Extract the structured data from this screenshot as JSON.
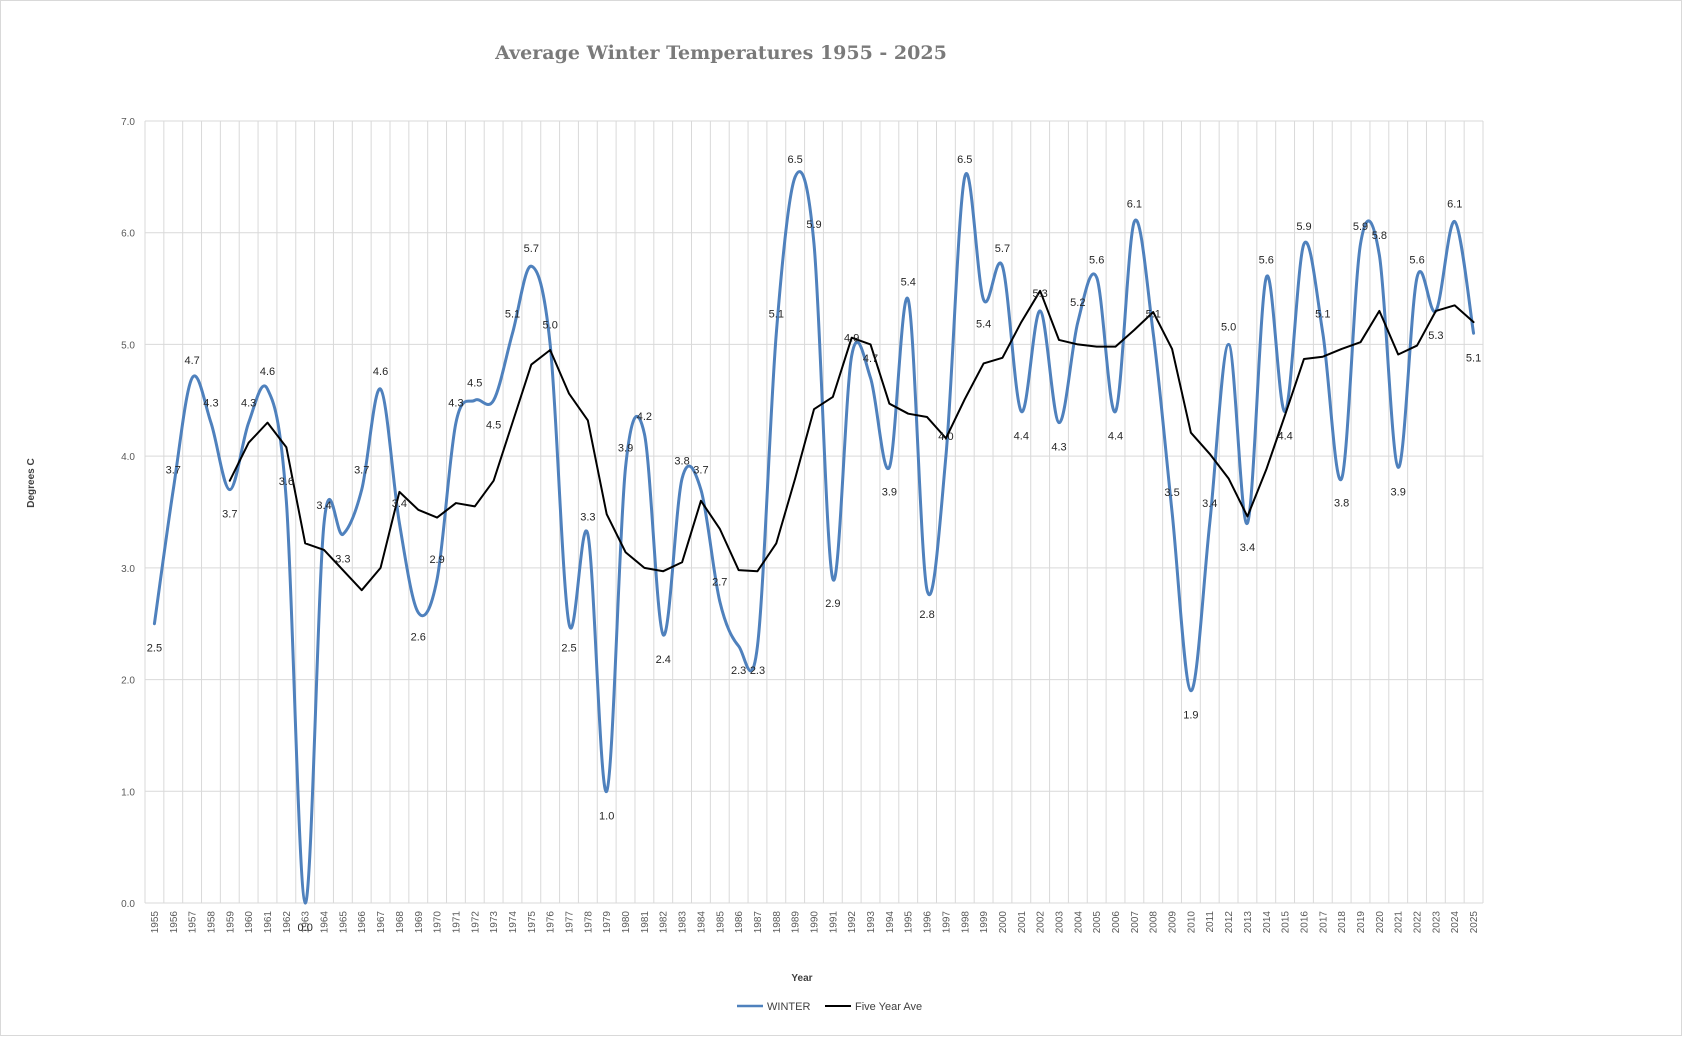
{
  "chart_data": {
    "type": "line",
    "title": "Average Winter Temperatures 1955 - 2025",
    "xlabel": "Year",
    "ylabel": "Degrees C",
    "ylim": [
      0,
      7
    ],
    "yticks": [
      "0.0",
      "1.0",
      "2.0",
      "3.0",
      "4.0",
      "5.0",
      "6.0",
      "7.0"
    ],
    "grid": true,
    "legend_placement": "bottom",
    "x": [
      1955,
      1956,
      1957,
      1958,
      1959,
      1960,
      1961,
      1962,
      1963,
      1964,
      1965,
      1966,
      1967,
      1968,
      1969,
      1970,
      1971,
      1972,
      1973,
      1974,
      1975,
      1976,
      1977,
      1978,
      1979,
      1980,
      1981,
      1982,
      1983,
      1984,
      1985,
      1986,
      1987,
      1988,
      1989,
      1990,
      1991,
      1992,
      1993,
      1994,
      1995,
      1996,
      1997,
      1998,
      1999,
      2000,
      2001,
      2002,
      2003,
      2004,
      2005,
      2006,
      2007,
      2008,
      2009,
      2010,
      2011,
      2012,
      2013,
      2014,
      2015,
      2016,
      2017,
      2018,
      2019,
      2020,
      2021,
      2022,
      2023,
      2024,
      2025
    ],
    "series": [
      {
        "name": "WINTER",
        "color": "#4f81bd",
        "smooth": true,
        "values": [
          2.5,
          3.7,
          4.7,
          4.3,
          3.7,
          4.3,
          4.6,
          3.6,
          0.0,
          3.4,
          3.3,
          3.7,
          4.6,
          3.4,
          2.6,
          2.9,
          4.3,
          4.5,
          4.5,
          5.1,
          5.7,
          5.0,
          2.5,
          3.3,
          1.0,
          3.9,
          4.2,
          2.4,
          3.8,
          3.7,
          2.7,
          2.3,
          2.3,
          5.1,
          6.5,
          5.9,
          2.9,
          4.9,
          4.7,
          3.9,
          5.4,
          2.8,
          4.0,
          6.5,
          5.4,
          5.7,
          4.4,
          5.3,
          4.3,
          5.2,
          5.6,
          4.4,
          6.1,
          5.1,
          3.5,
          1.9,
          3.4,
          5.0,
          3.4,
          5.6,
          4.4,
          5.9,
          5.1,
          3.8,
          5.9,
          5.8,
          3.9,
          5.6,
          5.3,
          6.1,
          5.1
        ],
        "labels": [
          "2.5",
          "3.7",
          "4.7",
          "4.3",
          "3.7",
          "4.3",
          "4.6",
          "3.6",
          "0.0",
          "3.4",
          "3.3",
          "3.7",
          "4.6",
          "3.4",
          "2.6",
          "2.9",
          "4.3",
          "4.5",
          "4.5",
          "5.1",
          "5.7",
          "5.0",
          "2.5",
          "3.3",
          "1.0",
          "3.9",
          "4.2",
          "2.4",
          "3.8",
          "3.7",
          "2.7",
          "2.3",
          "2.3",
          "5.1",
          "6.5",
          "5.9",
          "2.9",
          "4.9",
          "4.7",
          "3.9",
          "5.4",
          "2.8",
          "4.0",
          "6.5",
          "5.4",
          "5.7",
          "4.4",
          "5.3",
          "4.3",
          "5.2",
          "5.6",
          "4.4",
          "6.1",
          "5.1",
          "3.5",
          "1.9",
          "3.4",
          "5.0",
          "3.4",
          "5.6",
          "4.4",
          "5.9",
          "5.1",
          "3.8",
          "5.9",
          "5.8",
          "3.9",
          "5.6",
          "5.3",
          "6.1",
          "5.1"
        ]
      },
      {
        "name": "Five Year Ave",
        "color": "#000000",
        "smooth": false,
        "values": [
          null,
          null,
          null,
          null,
          3.78,
          4.12,
          4.3,
          4.08,
          3.22,
          3.16,
          2.98,
          2.8,
          3.0,
          3.68,
          3.52,
          3.45,
          3.58,
          3.55,
          3.78,
          4.3,
          4.82,
          4.95,
          4.56,
          4.32,
          3.48,
          3.14,
          3.0,
          2.97,
          3.05,
          3.6,
          3.35,
          2.98,
          2.97,
          3.22,
          3.8,
          4.42,
          4.53,
          5.06,
          5.0,
          4.47,
          4.38,
          4.35,
          4.16,
          4.51,
          4.83,
          4.88,
          5.2,
          5.48,
          5.04,
          5.0,
          4.98,
          4.98,
          5.13,
          5.29,
          4.96,
          4.21,
          4.02,
          3.8,
          3.46,
          3.88,
          4.37,
          4.87,
          4.89,
          4.96,
          5.02,
          5.3,
          4.91,
          4.99,
          5.3,
          5.35,
          5.2
        ]
      }
    ]
  }
}
